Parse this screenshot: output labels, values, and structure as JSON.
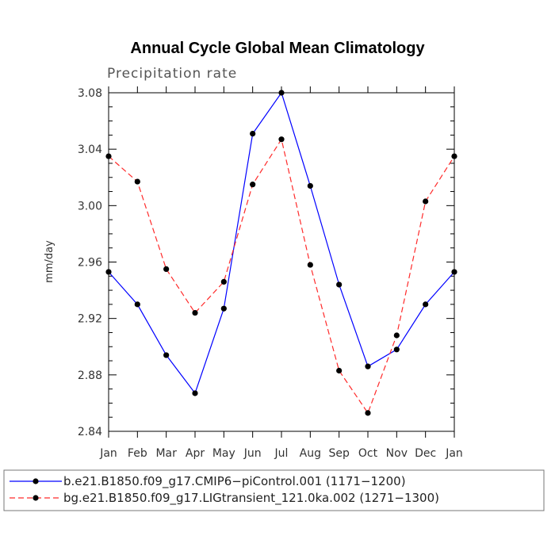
{
  "chart_data": {
    "type": "line",
    "title": "Annual Cycle Global Mean Climatology",
    "subtitle": "Precipitation rate",
    "xlabel": "",
    "ylabel": "mm/day",
    "categories": [
      "Jan",
      "Feb",
      "Mar",
      "Apr",
      "May",
      "Jun",
      "Jul",
      "Aug",
      "Sep",
      "Oct",
      "Nov",
      "Dec",
      "Jan"
    ],
    "ylim": [
      2.84,
      3.08
    ],
    "yticks": [
      "2.84",
      "2.88",
      "2.92",
      "2.96",
      "3.00",
      "3.04",
      "3.08"
    ],
    "grid": false,
    "legend_position": "bottom",
    "series": [
      {
        "name": "b.e21.B1850.f09_g17.CMIP6−piControl.001 (1171−1200)",
        "color": "#0000ff",
        "style": "solid",
        "values": [
          2.953,
          2.93,
          2.894,
          2.867,
          2.927,
          3.051,
          3.08,
          3.014,
          2.944,
          2.886,
          2.898,
          2.93,
          2.953
        ]
      },
      {
        "name": "bg.e21.B1850.f09_g17.LIGtransient_121.0ka.002 (1271−1300)",
        "color": "#ff2a2a",
        "style": "dashed",
        "values": [
          3.035,
          3.017,
          2.955,
          2.924,
          2.946,
          3.015,
          3.047,
          2.958,
          2.883,
          2.853,
          2.908,
          3.003,
          3.035
        ]
      }
    ]
  }
}
